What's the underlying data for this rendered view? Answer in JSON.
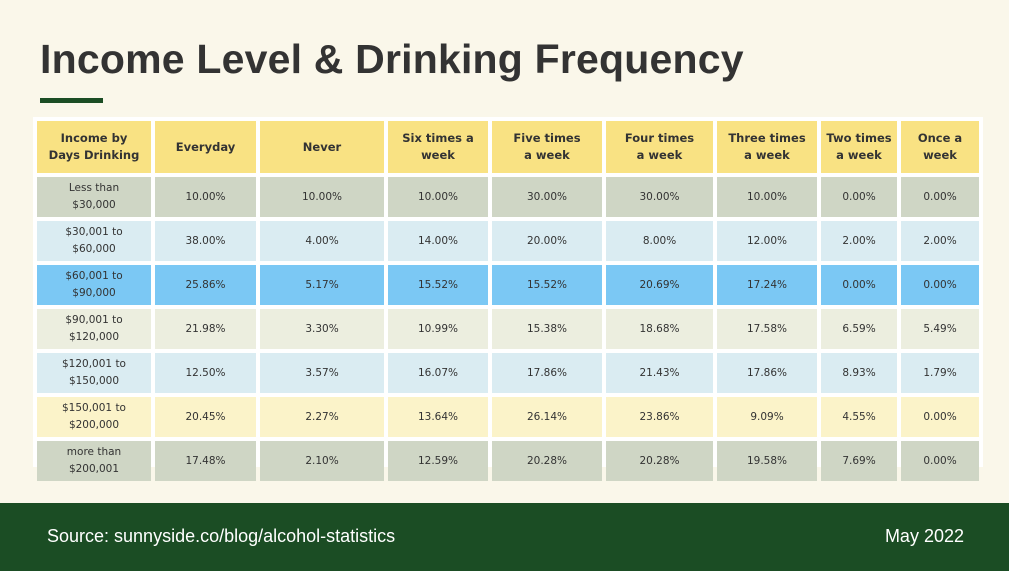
{
  "title": "Income Level & Drinking Frequency",
  "footer": {
    "source": "Source: sunnyside.co/blog/alcohol-statistics",
    "date": "May 2022"
  },
  "colors": {
    "header": "#f9e283",
    "row_colors": [
      "#cfd6c5",
      "#daecf2",
      "#7bc8f4",
      "#eceedf",
      "#daecf2",
      "#fbf3c9",
      "#cfd6c5"
    ],
    "accent": "#1b4d24"
  },
  "chart_data": {
    "type": "table",
    "columns": [
      "Income by Days Drinking",
      "Everyday",
      "Never",
      "Six times a week",
      "Five times a week",
      "Four times a week",
      "Three times a week",
      "Two times a week",
      "Once a week"
    ],
    "rows": [
      [
        "Less than $30,000",
        "10.00%",
        "10.00%",
        "10.00%",
        "30.00%",
        "30.00%",
        "10.00%",
        "0.00%",
        "0.00%"
      ],
      [
        "$30,001 to $60,000",
        "38.00%",
        "4.00%",
        "14.00%",
        "20.00%",
        "8.00%",
        "12.00%",
        "2.00%",
        "2.00%"
      ],
      [
        "$60,001 to $90,000",
        "25.86%",
        "5.17%",
        "15.52%",
        "15.52%",
        "20.69%",
        "17.24%",
        "0.00%",
        "0.00%"
      ],
      [
        "$90,001 to $120,000",
        "21.98%",
        "3.30%",
        "10.99%",
        "15.38%",
        "18.68%",
        "17.58%",
        "6.59%",
        "5.49%"
      ],
      [
        "$120,001 to $150,000",
        "12.50%",
        "3.57%",
        "16.07%",
        "17.86%",
        "21.43%",
        "17.86%",
        "8.93%",
        "1.79%"
      ],
      [
        "$150,001 to $200,000",
        "20.45%",
        "2.27%",
        "13.64%",
        "26.14%",
        "23.86%",
        "9.09%",
        "4.55%",
        "0.00%"
      ],
      [
        "more than $200,001",
        "17.48%",
        "2.10%",
        "12.59%",
        "20.28%",
        "20.28%",
        "19.58%",
        "7.69%",
        "0.00%"
      ]
    ]
  }
}
